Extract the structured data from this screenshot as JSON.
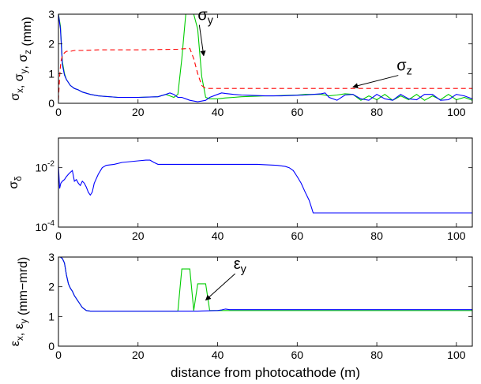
{
  "chart_data": [
    {
      "type": "line",
      "xlim": [
        0,
        104
      ],
      "ylim": [
        0,
        3
      ],
      "yscale": "linear",
      "xticks": [
        0,
        20,
        40,
        60,
        80,
        100
      ],
      "yticks": [
        0,
        1,
        2,
        3
      ],
      "xtick_labels": [
        "0",
        "20",
        "40",
        "60",
        "80",
        "100"
      ],
      "ytick_labels": [
        "0",
        "1",
        "2",
        "3"
      ],
      "xlabel": "",
      "ylabel": "σx, σy, σz (mm)",
      "series": [
        {
          "color": "#00cc00",
          "dash": false,
          "x": [
            0,
            0.5,
            1,
            1.5,
            2,
            3,
            4,
            5,
            6,
            8,
            10,
            15,
            20,
            25,
            27,
            28,
            29,
            30,
            31,
            32,
            33,
            33.5,
            34,
            35,
            36,
            37,
            38,
            40,
            42,
            44,
            46,
            48,
            50,
            52,
            54,
            56,
            58,
            60,
            62,
            64,
            66,
            68,
            70,
            72,
            74,
            76,
            78,
            80,
            82,
            84,
            86,
            88,
            90,
            92,
            94,
            96,
            98,
            100,
            102,
            104
          ],
          "y": [
            3,
            2.6,
            1.4,
            1.0,
            0.8,
            0.6,
            0.5,
            0.45,
            0.38,
            0.3,
            0.25,
            0.2,
            0.2,
            0.22,
            0.3,
            0.25,
            0.2,
            0.3,
            1.5,
            3,
            3.1,
            3.1,
            3.1,
            2.5,
            0.9,
            0.2,
            0.15,
            0.15,
            0.18,
            0.2,
            0.22,
            0.23,
            0.24,
            0.25,
            0.25,
            0.26,
            0.27,
            0.28,
            0.3,
            0.3,
            0.3,
            0.25,
            0.28,
            0.32,
            0.3,
            0.1,
            0.25,
            0.12,
            0.3,
            0.1,
            0.25,
            0.12,
            0.3,
            0.1,
            0.25,
            0.12,
            0.3,
            0.12,
            0.2,
            0.1
          ]
        },
        {
          "color": "#0000ff",
          "dash": false,
          "x": [
            0,
            0.5,
            1,
            1.5,
            2,
            3,
            4,
            5,
            6,
            8,
            10,
            15,
            20,
            25,
            27,
            28,
            29,
            30,
            31,
            32,
            33,
            35,
            37,
            38,
            40,
            41,
            42,
            44,
            46,
            48,
            50,
            52,
            54,
            56,
            58,
            60,
            62,
            64,
            66,
            67,
            68,
            70,
            72,
            74,
            76,
            78,
            80,
            82,
            84,
            86,
            88,
            90,
            92,
            94,
            96,
            98,
            100,
            102,
            104
          ],
          "y": [
            3,
            2.5,
            1.3,
            0.95,
            0.8,
            0.6,
            0.5,
            0.45,
            0.38,
            0.3,
            0.25,
            0.2,
            0.2,
            0.22,
            0.3,
            0.35,
            0.3,
            0.2,
            0.2,
            0.15,
            0.1,
            0.05,
            0.1,
            0.2,
            0.3,
            0.35,
            0.33,
            0.3,
            0.28,
            0.27,
            0.26,
            0.25,
            0.25,
            0.25,
            0.26,
            0.27,
            0.28,
            0.3,
            0.32,
            0.35,
            0.2,
            0.1,
            0.28,
            0.3,
            0.15,
            0.1,
            0.3,
            0.15,
            0.1,
            0.3,
            0.15,
            0.12,
            0.3,
            0.3,
            0.1,
            0.12,
            0.3,
            0.25,
            0.15
          ]
        },
        {
          "color": "#ff0000",
          "dash": true,
          "x": [
            0,
            0.3,
            0.6,
            1,
            1.5,
            2,
            3,
            4,
            6,
            10,
            20,
            30,
            33,
            34,
            35,
            36,
            37,
            40,
            50,
            60,
            70,
            80,
            90,
            100,
            104
          ],
          "y": [
            0.1,
            0.9,
            1.4,
            1.6,
            1.7,
            1.75,
            1.75,
            1.78,
            1.78,
            1.8,
            1.8,
            1.82,
            1.85,
            1.5,
            1.0,
            0.6,
            0.5,
            0.5,
            0.5,
            0.5,
            0.5,
            0.5,
            0.5,
            0.5,
            0.5
          ]
        }
      ],
      "annotations": [
        {
          "label": "σy",
          "x": 35,
          "y": 2.8,
          "arrow_to": [
            36.5,
            1.6
          ]
        },
        {
          "label": "σz",
          "x": 85,
          "y": 1.1,
          "arrow_to": [
            74,
            0.55
          ]
        }
      ]
    },
    {
      "type": "line",
      "xlim": [
        0,
        104
      ],
      "ylim": [
        0.0001,
        0.1
      ],
      "yscale": "log",
      "xticks": [
        0,
        20,
        40,
        60,
        80,
        100
      ],
      "yticks": [
        0.0001,
        0.01
      ],
      "xtick_labels": [
        "0",
        "20",
        "40",
        "60",
        "80",
        "100"
      ],
      "ytick_labels": [
        "10-4",
        "10-2"
      ],
      "xlabel": "",
      "ylabel": "σδ",
      "series": [
        {
          "color": "#0000ff",
          "dash": false,
          "x": [
            0,
            0.3,
            0.6,
            1,
            1.5,
            2,
            2.5,
            3,
            3.5,
            4,
            4.5,
            5,
            5.5,
            6,
            6.5,
            7,
            7.5,
            8,
            8.5,
            9,
            10,
            11,
            12,
            14,
            16,
            18,
            20,
            22,
            23,
            24,
            25,
            30,
            40,
            50,
            55,
            57,
            58,
            59,
            60,
            61,
            62,
            63,
            63.5,
            64,
            70,
            80,
            90,
            100,
            104
          ],
          "y": [
            0.012,
            0.002,
            0.003,
            0.0035,
            0.004,
            0.005,
            0.006,
            0.007,
            0.008,
            0.0035,
            0.004,
            0.003,
            0.0025,
            0.0035,
            0.003,
            0.0022,
            0.0015,
            0.0012,
            0.0015,
            0.003,
            0.006,
            0.01,
            0.012,
            0.013,
            0.015,
            0.016,
            0.017,
            0.018,
            0.018,
            0.015,
            0.013,
            0.013,
            0.013,
            0.013,
            0.012,
            0.011,
            0.01,
            0.008,
            0.005,
            0.003,
            0.0015,
            0.0008,
            0.0005,
            0.0003,
            0.0003,
            0.0003,
            0.0003,
            0.0003,
            0.0003
          ]
        }
      ],
      "annotations": []
    },
    {
      "type": "line",
      "xlim": [
        0,
        104
      ],
      "ylim": [
        0,
        3
      ],
      "yscale": "linear",
      "xticks": [
        0,
        20,
        40,
        60,
        80,
        100
      ],
      "yticks": [
        0,
        1,
        2,
        3
      ],
      "xtick_labels": [
        "0",
        "20",
        "40",
        "60",
        "80",
        "100"
      ],
      "ytick_labels": [
        "0",
        "1",
        "2",
        "3"
      ],
      "xlabel": "distance from photocathode (m)",
      "ylabel": "εx, εy (mm−mrd)",
      "series": [
        {
          "color": "#00cc00",
          "dash": false,
          "x": [
            0,
            0.5,
            1,
            1.5,
            2,
            2.5,
            3,
            3.5,
            4,
            5,
            6,
            7,
            8,
            10,
            20,
            25,
            30,
            31,
            32,
            33,
            34,
            35,
            36,
            37,
            38,
            39,
            40,
            42,
            50,
            60,
            70,
            80,
            90,
            100,
            104
          ],
          "y": [
            3,
            3,
            2.95,
            2.8,
            2.4,
            2.1,
            1.95,
            1.85,
            1.7,
            1.5,
            1.3,
            1.2,
            1.18,
            1.18,
            1.18,
            1.18,
            1.18,
            2.6,
            2.6,
            2.6,
            1.2,
            2.1,
            2.1,
            2.1,
            1.2,
            1.2,
            1.2,
            1.2,
            1.2,
            1.2,
            1.2,
            1.2,
            1.2,
            1.2,
            1.2
          ]
        },
        {
          "color": "#0000ff",
          "dash": false,
          "x": [
            0,
            0.5,
            1,
            1.5,
            2,
            2.5,
            3,
            3.5,
            4,
            5,
            6,
            7,
            8,
            10,
            20,
            30,
            35,
            40,
            41,
            42,
            43,
            50,
            60,
            70,
            80,
            90,
            100,
            104
          ],
          "y": [
            3,
            3,
            2.95,
            2.8,
            2.4,
            2.1,
            1.95,
            1.85,
            1.7,
            1.5,
            1.3,
            1.2,
            1.18,
            1.18,
            1.18,
            1.18,
            1.18,
            1.2,
            1.22,
            1.25,
            1.23,
            1.23,
            1.23,
            1.23,
            1.23,
            1.23,
            1.23,
            1.23
          ]
        }
      ],
      "annotations": [
        {
          "label": "εy",
          "x": 44,
          "y": 2.6,
          "arrow_to": [
            37,
            1.55
          ]
        }
      ]
    }
  ]
}
